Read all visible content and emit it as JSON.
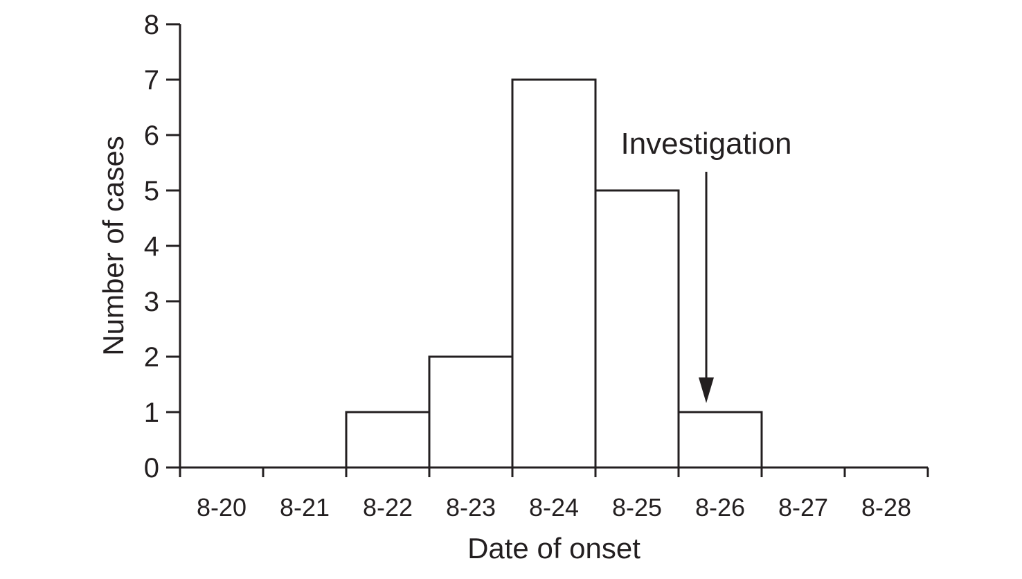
{
  "chart_data": {
    "type": "bar",
    "categories": [
      "8-20",
      "8-21",
      "8-22",
      "8-23",
      "8-24",
      "8-25",
      "8-26",
      "8-27",
      "8-28"
    ],
    "values": [
      0,
      0,
      1,
      2,
      7,
      5,
      1,
      0,
      0
    ],
    "xlabel": "Date of onset",
    "ylabel": "Number of cases",
    "ylim": [
      0,
      8
    ],
    "yticks": [
      "0",
      "1",
      "2",
      "3",
      "4",
      "5",
      "6",
      "7",
      "8"
    ],
    "grid": false,
    "bar_fill": "#ffffff",
    "bar_stroke": "#231f20",
    "annotation": {
      "text": "Investigation",
      "category": "8-26"
    }
  }
}
